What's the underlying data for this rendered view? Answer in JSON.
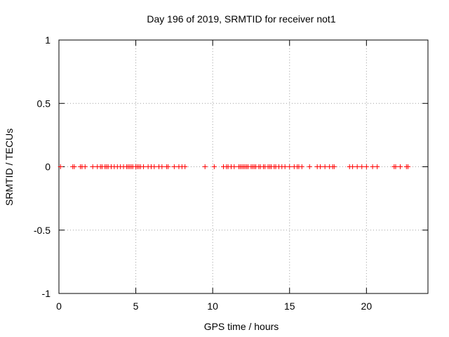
{
  "chart_data": {
    "type": "scatter",
    "title": "Day 196 of 2019, SRMTID for receiver not1",
    "xlabel": "GPS time / hours",
    "ylabel": "SRMTID / TECUs",
    "xlim": [
      0,
      24
    ],
    "ylim": [
      -1,
      1
    ],
    "xticks": [
      0,
      5,
      10,
      15,
      20
    ],
    "yticks": [
      -1,
      -0.5,
      0,
      0.5,
      1
    ],
    "ytick_labels": [
      "-1",
      "-0.5",
      "0",
      "0.5",
      "1"
    ],
    "grid": true,
    "marker": "+",
    "series": [
      {
        "name": "SRMTID",
        "color": "#ff0000",
        "x": [
          0.1,
          0.9,
          1.0,
          1.4,
          1.5,
          1.7,
          2.2,
          2.5,
          2.7,
          2.8,
          3.0,
          3.1,
          3.2,
          3.4,
          3.6,
          3.8,
          4.0,
          4.2,
          4.4,
          4.5,
          4.6,
          4.7,
          4.8,
          5.0,
          5.1,
          5.2,
          5.3,
          5.5,
          5.8,
          6.0,
          6.2,
          6.5,
          6.7,
          7.0,
          7.1,
          7.5,
          7.8,
          8.0,
          8.2,
          9.5,
          10.1,
          10.7,
          10.9,
          11.0,
          11.2,
          11.4,
          11.7,
          11.8,
          11.9,
          12.0,
          12.1,
          12.2,
          12.3,
          12.5,
          12.6,
          12.7,
          12.8,
          13.0,
          13.1,
          13.3,
          13.4,
          13.6,
          13.7,
          13.8,
          14.0,
          14.1,
          14.3,
          14.5,
          14.7,
          15.0,
          15.3,
          15.5,
          15.6,
          15.8,
          16.3,
          16.8,
          17.0,
          17.3,
          17.6,
          17.8,
          17.9,
          18.9,
          19.1,
          19.4,
          19.7,
          20.0,
          20.4,
          20.7,
          21.8,
          21.9,
          22.2,
          22.6,
          22.7
        ],
        "y": [
          0,
          0,
          0,
          0,
          0,
          0,
          0,
          0,
          0,
          0,
          0,
          0,
          0,
          0,
          0,
          0,
          0,
          0,
          0,
          0,
          0,
          0,
          0,
          0,
          0,
          0,
          0,
          0,
          0,
          0,
          0,
          0,
          0,
          0,
          0,
          0,
          0,
          0,
          0,
          0,
          0,
          0,
          0,
          0,
          0,
          0,
          0,
          0,
          0,
          0,
          0,
          0,
          0,
          0,
          0,
          0,
          0,
          0,
          0,
          0,
          0,
          0,
          0,
          0,
          0,
          0,
          0,
          0,
          0,
          0,
          0,
          0,
          0,
          0,
          0,
          0,
          0,
          0,
          0,
          0,
          0,
          0,
          0,
          0,
          0,
          0,
          0,
          0,
          0,
          0,
          0,
          0,
          0
        ]
      }
    ]
  }
}
